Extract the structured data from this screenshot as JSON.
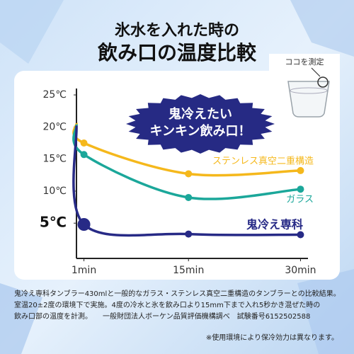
{
  "title_lines": [
    "氷水を入れた時の",
    "飲み口の温度比較"
  ],
  "badge": [
    "鬼冷えたい",
    "キンキン飲み口！"
  ],
  "cup_label": "ココを測定",
  "chart_data": {
    "type": "line",
    "x": [
      0,
      1,
      15,
      30
    ],
    "xlim": [
      0,
      31
    ],
    "xticks": [
      {
        "value": 1,
        "label": "1min"
      },
      {
        "value": 15,
        "label": "15min"
      },
      {
        "value": 30,
        "label": "30min"
      }
    ],
    "ylim": [
      -0.5,
      26
    ],
    "yticks": [
      {
        "value": 5,
        "label": "5℃"
      },
      {
        "value": 10,
        "label": "10℃"
      },
      {
        "value": 15,
        "label": "15℃"
      },
      {
        "value": 20,
        "label": "20℃"
      },
      {
        "value": 25,
        "label": "25℃"
      }
    ],
    "series": [
      {
        "name": "ステンレス真空二重構造",
        "color": "#f5b81c",
        "values": [
          20.6,
          17.5,
          12.7,
          13.2
        ]
      },
      {
        "name": "ガラス",
        "color": "#1ba79a",
        "values": [
          20.4,
          15.7,
          9.0,
          10.3
        ]
      },
      {
        "name": "鬼冷え専科",
        "color": "#272a86",
        "values": [
          20.2,
          4.8,
          3.3,
          3.2
        ]
      }
    ]
  },
  "notes": [
    "鬼冷え専科タンブラー430mlと一般的なガラス・ステンレス真空二重構造のタンブラーとの比較結果。",
    "室温20±2度の環境下で実施。4度の冷水と氷を飲み口より15mm下まで入れ5秒かき混ぜた時の",
    "飲み口部の温度を計測。　　一般財団法人ボーケン品質評価機構調べ　試験番号6152502588",
    "※使用環境により保冷効力は異なります。"
  ]
}
